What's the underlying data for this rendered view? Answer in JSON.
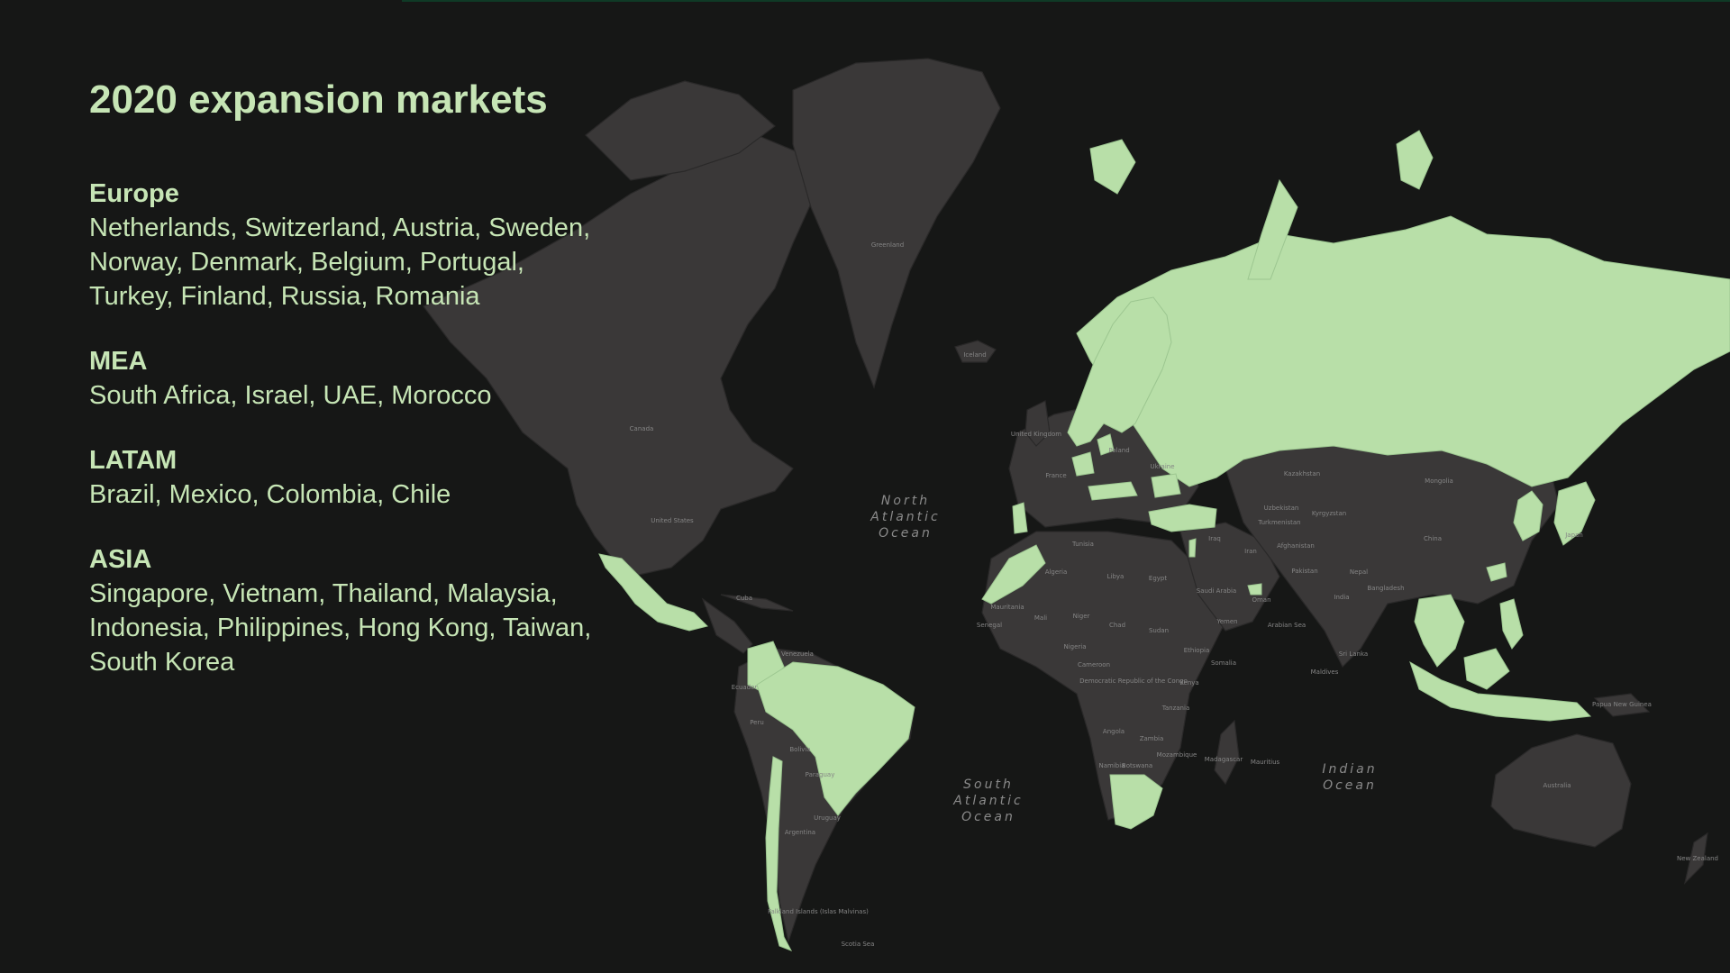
{
  "title": "2020 expansion markets",
  "regions": [
    {
      "name": "Europe",
      "countries": "Netherlands, Switzerland, Austria, Sweden, Norway, Denmark, Belgium, Portugal, Turkey, Finland, Russia, Romania"
    },
    {
      "name": "MEA",
      "countries": "South Africa, Israel, UAE, Morocco"
    },
    {
      "name": "LATAM",
      "countries": "Brazil, Mexico, Colombia, Chile"
    },
    {
      "name": "ASIA",
      "countries": "Singapore, Vietnam, Thailand, Malaysia, Indonesia, Philippines, Hong Kong, Taiwan, South Korea"
    }
  ],
  "map": {
    "ocean_labels": {
      "north_atlantic": [
        "North",
        "Atlantic",
        "Ocean"
      ],
      "south_atlantic": [
        "South",
        "Atlantic",
        "Ocean"
      ],
      "indian": [
        "Indian",
        "Ocean"
      ]
    },
    "country_labels": {
      "greenland": "Greenland",
      "canada": "Canada",
      "united_states": "United States",
      "iceland": "Iceland",
      "united_kingdom": "United Kingdom",
      "france": "France",
      "poland": "Poland",
      "ukraine": "Ukraine",
      "kazakhstan": "Kazakhstan",
      "mongolia": "Mongolia",
      "china": "China",
      "japan": "Japan",
      "iran": "Iran",
      "india": "India",
      "saudi_arabia": "Saudi Arabia",
      "egypt": "Egypt",
      "algeria": "Algeria",
      "libya": "Libya",
      "mali": "Mali",
      "niger": "Niger",
      "chad": "Chad",
      "sudan": "Sudan",
      "ethiopia": "Ethiopia",
      "nigeria": "Nigeria",
      "drc": "Democratic Republic of the Congo",
      "tanzania": "Tanzania",
      "angola": "Angola",
      "zambia": "Zambia",
      "madagascar": "Madagascar",
      "australia": "Australia",
      "new_zealand": "New Zealand",
      "venezuela": "Venezuela",
      "peru": "Peru",
      "bolivia": "Bolivia",
      "argentina": "Argentina",
      "paraguay": "Paraguay",
      "uruguay": "Uruguay",
      "ecuador": "Ecuador",
      "cuba": "Cuba",
      "sri_lanka": "Sri Lanka",
      "maldives": "Maldives",
      "papua_new_guinea": "Papua New Guinea",
      "afghanistan": "Afghanistan",
      "pakistan": "Pakistan",
      "uzbekistan": "Uzbekistan",
      "turkmenistan": "Turkmenistan",
      "nepal": "Nepal",
      "bangladesh": "Bangladesh",
      "somalia": "Somalia",
      "kenya": "Kenya",
      "yemen": "Yemen",
      "oman": "Oman",
      "iraq": "Iraq",
      "namibia": "Namibia",
      "botswana": "Botswana",
      "mozambique": "Mozambique",
      "cameroon": "Cameroon",
      "mauritania": "Mauritania",
      "senegal": "Senegal",
      "tunisia": "Tunisia",
      "kyrgyzstan": "Kyrgyzstan",
      "arabian_sea": "Arabian Sea",
      "mauritius": "Mauritius",
      "falkland": "Falkland Islands (Islas Malvinas)",
      "scotia_sea": "Scotia Sea"
    },
    "highlighted_markets": [
      "Netherlands",
      "Switzerland",
      "Austria",
      "Sweden",
      "Norway",
      "Denmark",
      "Belgium",
      "Portugal",
      "Turkey",
      "Finland",
      "Russia",
      "Romania",
      "South Africa",
      "Israel",
      "UAE",
      "Morocco",
      "Brazil",
      "Mexico",
      "Colombia",
      "Chile",
      "Singapore",
      "Vietnam",
      "Thailand",
      "Malaysia",
      "Indonesia",
      "Philippines",
      "Hong Kong",
      "Taiwan",
      "South Korea"
    ],
    "colors": {
      "background": "#161716",
      "land": "#3a3838",
      "highlight": "#b8dfa8",
      "text": "#c6e5b5"
    }
  }
}
